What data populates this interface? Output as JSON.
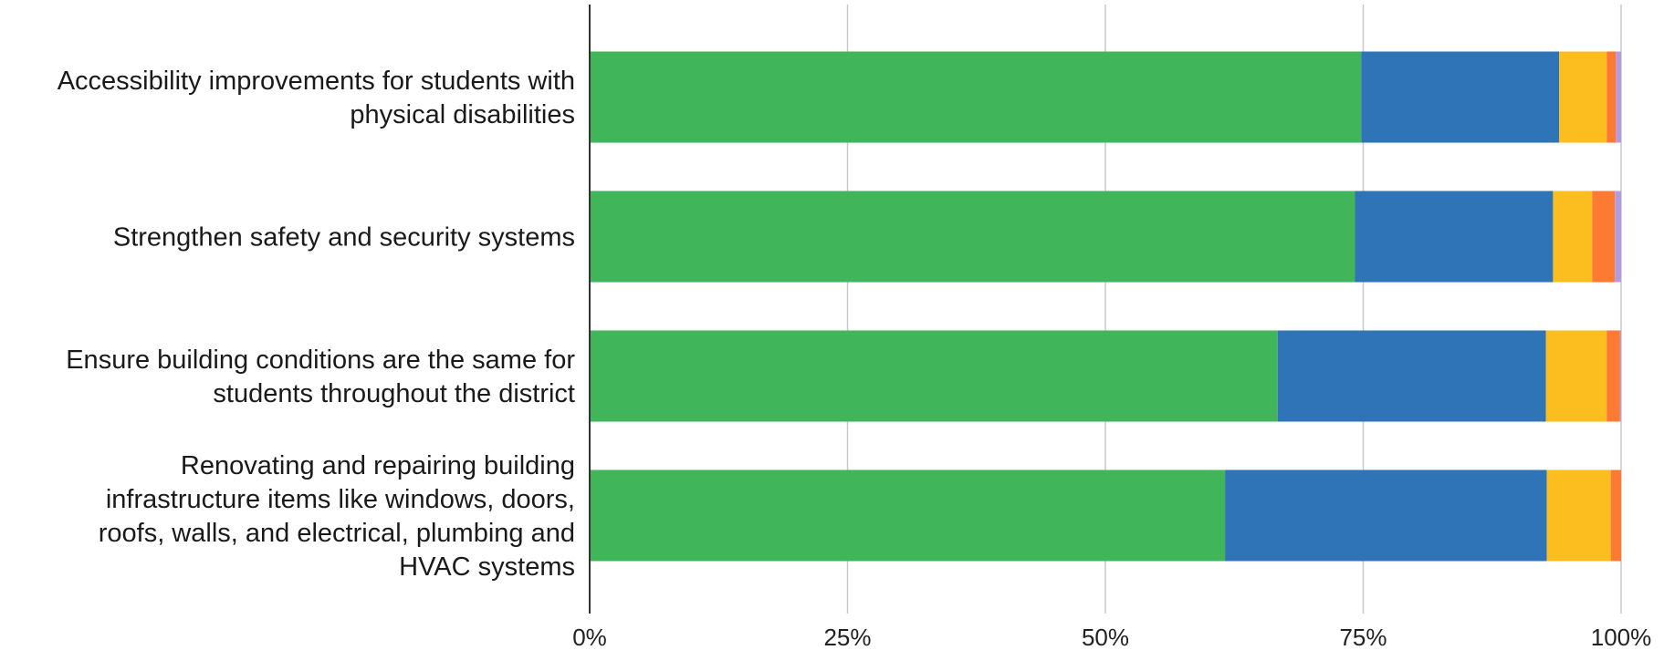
{
  "chart_data": {
    "type": "bar",
    "orientation": "horizontal",
    "stacked": "percent",
    "title": "",
    "xlabel": "",
    "ylabel": "",
    "xlim": [
      0,
      100
    ],
    "x_ticks": [
      "0%",
      "25%",
      "50%",
      "75%",
      "100%"
    ],
    "grid": true,
    "legend": "none",
    "categories": [
      {
        "lines": [
          "Accessibility improvements for students with",
          "physical disabilities"
        ]
      },
      {
        "lines": [
          "Strengthen safety and security systems"
        ]
      },
      {
        "lines": [
          "Ensure building conditions are the same for",
          "students throughout the district"
        ]
      },
      {
        "lines": [
          "Renovating and repairing building",
          "infrastructure items like windows, doors,",
          "roofs, walls, and electrical, plumbing and",
          "HVAC systems"
        ]
      }
    ],
    "series": [
      {
        "color": "#41b55a",
        "values": [
          74.8,
          74.2,
          66.7,
          61.6
        ]
      },
      {
        "color": "#2e74b7",
        "values": [
          19.2,
          19.2,
          26.0,
          31.2
        ]
      },
      {
        "color": "#fbbe1e",
        "values": [
          4.6,
          3.8,
          5.9,
          6.2
        ]
      },
      {
        "color": "#fd7a33",
        "values": [
          0.9,
          2.2,
          1.3,
          1.0
        ]
      },
      {
        "color": "#b49be0",
        "values": [
          0.5,
          0.6,
          0.1,
          0.0
        ]
      }
    ]
  }
}
